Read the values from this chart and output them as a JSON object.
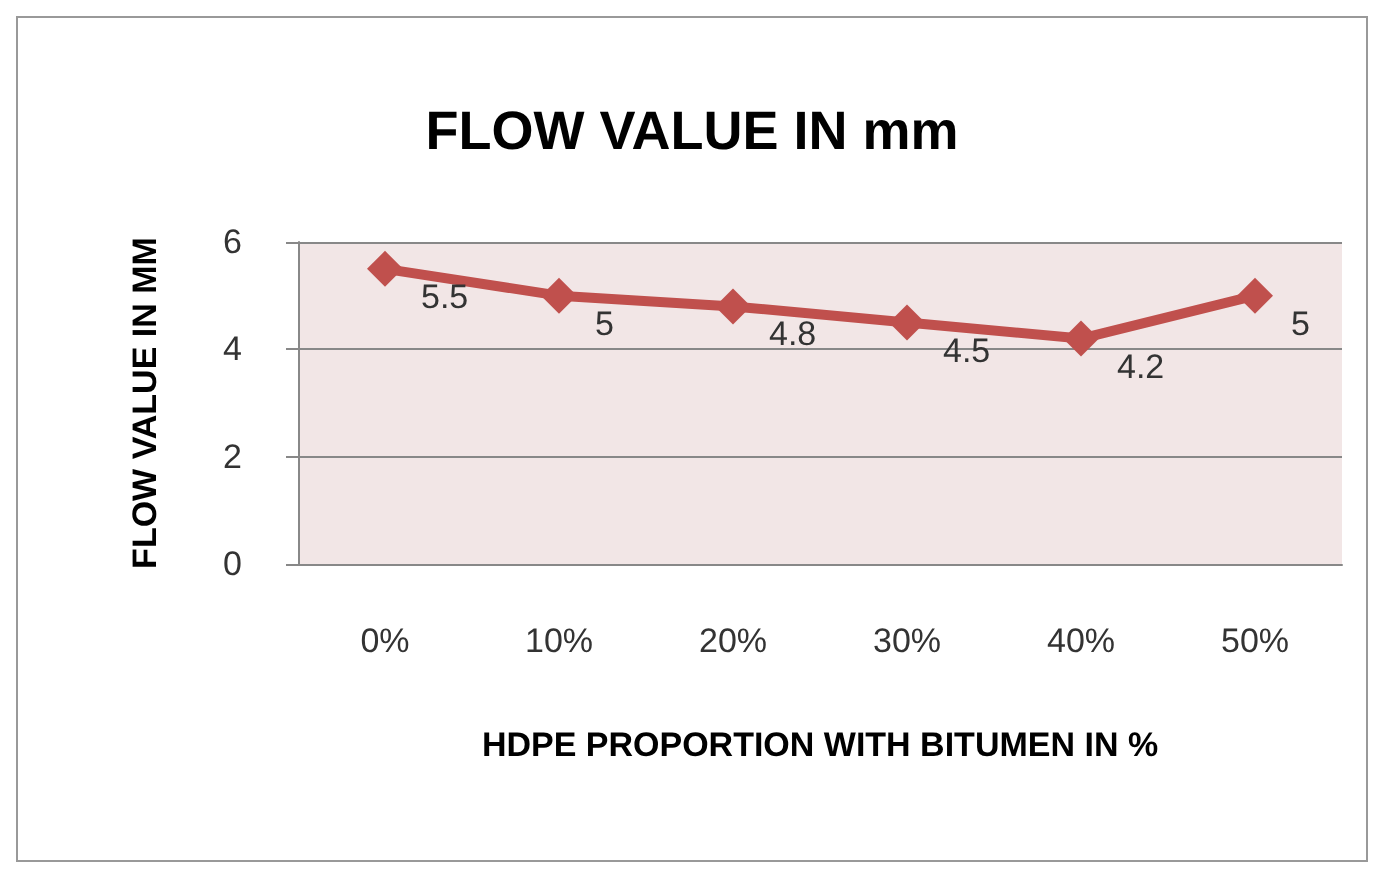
{
  "chart_data": {
    "type": "line",
    "title": "FLOW VALUE IN mm",
    "xlabel": "HDPE PROPORTION WITH BITUMEN IN %",
    "ylabel": "FLOW VALUE IN MM",
    "categories": [
      "0%",
      "10%",
      "20%",
      "30%",
      "40%",
      "50%"
    ],
    "series": [
      {
        "color": "#c0504d",
        "values": [
          5.5,
          5,
          4.8,
          4.5,
          4.2,
          5
        ]
      }
    ],
    "ylim": [
      0,
      6
    ],
    "yticks": [
      0,
      2,
      4,
      6
    ],
    "grid": "y",
    "marker": "diamond",
    "line_style": "solid",
    "data_labels": true
  }
}
